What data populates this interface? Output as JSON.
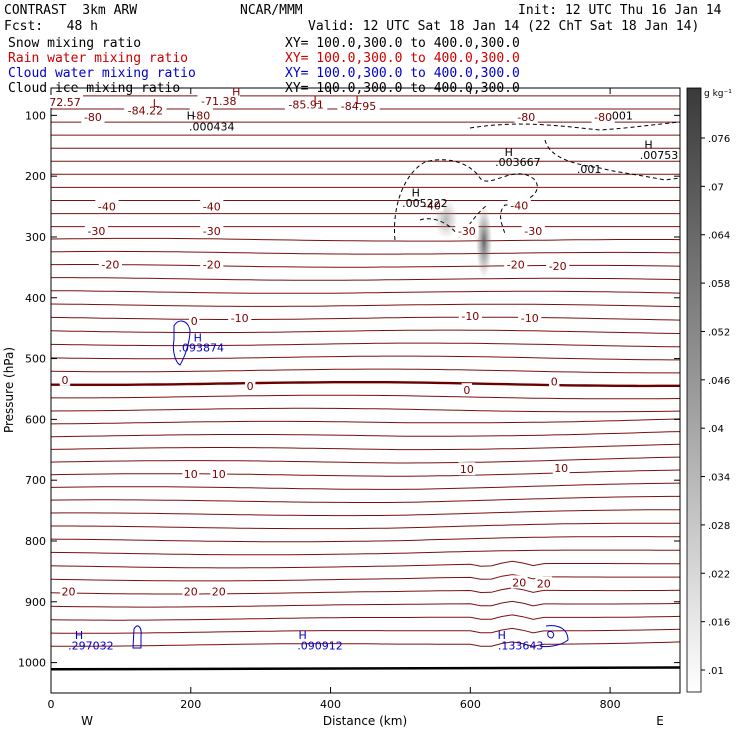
{
  "header": {
    "model": "CONTRAST  3km ARW",
    "org": "NCAR/MMM",
    "init": "Init: 12 UTC Thu 16 Jan 14",
    "fcst": "Fcst:   48 h",
    "valid": "Valid: 12 UTC Sat 18 Jan 14 (22 ChT Sat 18 Jan 14)"
  },
  "legend": [
    {
      "name": "Snow mixing ratio",
      "xy": "XY= 100.0,300.0 to 400.0,300.0",
      "color": "#000000"
    },
    {
      "name": "Rain water mixing ratio",
      "xy": "XY= 100.0,300.0 to 400.0,300.0",
      "color": "#cc0000"
    },
    {
      "name": "Cloud water mixing ratio",
      "xy": "XY= 100.0,300.0 to 400.0,300.0",
      "color": "#0000cc"
    },
    {
      "name": "Cloud ice mixing ratio",
      "xy": "XY= 100.0,300.0 to 400.0,300.0",
      "color": "#000000"
    }
  ],
  "colorbar": {
    "unit": "g kg⁻¹",
    "ticks": [
      ".01",
      ".016",
      ".022",
      ".028",
      ".034",
      ".04",
      ".046",
      ".052",
      ".058",
      ".064",
      ".07",
      ".076"
    ]
  },
  "chart_data": {
    "type": "cross-section",
    "xlabel": "Distance (km)",
    "ylabel": "Pressure (hPa)",
    "xlim": [
      0,
      900
    ],
    "ylim": [
      1050,
      55
    ],
    "xticks": [
      0,
      200,
      400,
      600,
      800
    ],
    "yticks": [
      100,
      200,
      300,
      400,
      500,
      600,
      700,
      800,
      900,
      1000
    ],
    "left_dir": "W",
    "right_dir": "E",
    "temperature_labels": [
      {
        "t": "72.57",
        "x": 20,
        "p": 78
      },
      {
        "t": "-71.38",
        "x": 240,
        "p": 76
      },
      {
        "t": "-84.22",
        "x": 135,
        "p": 92
      },
      {
        "t": "-85.91",
        "x": 365,
        "p": 82
      },
      {
        "t": "-84.95",
        "x": 440,
        "p": 85
      },
      {
        "t": "-80",
        "x": 60,
        "p": 103
      },
      {
        "t": "-80",
        "x": 215,
        "p": 100
      },
      {
        "t": "-80",
        "x": 680,
        "p": 103
      },
      {
        "t": "-80",
        "x": 790,
        "p": 103
      },
      {
        "t": "-40",
        "x": 80,
        "p": 250
      },
      {
        "t": "-40",
        "x": 230,
        "p": 250
      },
      {
        "t": "-40",
        "x": 545,
        "p": 248
      },
      {
        "t": "-40",
        "x": 670,
        "p": 248
      },
      {
        "t": "-30",
        "x": 65,
        "p": 290
      },
      {
        "t": "-30",
        "x": 230,
        "p": 290
      },
      {
        "t": "-30",
        "x": 595,
        "p": 290
      },
      {
        "t": "-30",
        "x": 690,
        "p": 290
      },
      {
        "t": "-20",
        "x": 85,
        "p": 345
      },
      {
        "t": "-20",
        "x": 230,
        "p": 345
      },
      {
        "t": "-20",
        "x": 665,
        "p": 345
      },
      {
        "t": "-20",
        "x": 725,
        "p": 348
      },
      {
        "t": "-10",
        "x": 270,
        "p": 433
      },
      {
        "t": "-10",
        "x": 600,
        "p": 430
      },
      {
        "t": "-10",
        "x": 685,
        "p": 433
      },
      {
        "t": "0",
        "x": 205,
        "p": 438
      },
      {
        "t": "0",
        "x": 20,
        "p": 535
      },
      {
        "t": "0",
        "x": 285,
        "p": 545
      },
      {
        "t": "0",
        "x": 595,
        "p": 552
      },
      {
        "t": "0",
        "x": 720,
        "p": 538
      },
      {
        "t": "10",
        "x": 200,
        "p": 690
      },
      {
        "t": "10",
        "x": 240,
        "p": 690
      },
      {
        "t": "10",
        "x": 595,
        "p": 682
      },
      {
        "t": "10",
        "x": 730,
        "p": 680
      },
      {
        "t": "20",
        "x": 25,
        "p": 883
      },
      {
        "t": "20",
        "x": 200,
        "p": 883
      },
      {
        "t": "20",
        "x": 240,
        "p": 883
      },
      {
        "t": "20",
        "x": 670,
        "p": 868
      },
      {
        "t": "20",
        "x": 705,
        "p": 870
      }
    ],
    "maxima_labels": [
      {
        "t": "H",
        "x": 200,
        "p": 100,
        "c": "#000000"
      },
      {
        "t": ".000434",
        "x": 230,
        "p": 118,
        "c": "#000000"
      },
      {
        "t": "L",
        "x": 150,
        "p": 80,
        "c": "#8b0000"
      },
      {
        "t": "H",
        "x": 265,
        "p": 61,
        "c": "#8b0000"
      },
      {
        "t": "L",
        "x": 380,
        "p": 75,
        "c": "#8b0000"
      },
      {
        "t": "L",
        "x": 440,
        "p": 75,
        "c": "#8b0000"
      },
      {
        "t": ".001",
        "x": 815,
        "p": 100,
        "c": "#000000"
      },
      {
        "t": "H",
        "x": 855,
        "p": 148,
        "c": "#000000"
      },
      {
        "t": ".00753",
        "x": 870,
        "p": 165,
        "c": "#000000"
      },
      {
        "t": ".001",
        "x": 770,
        "p": 188,
        "c": "#000000"
      },
      {
        "t": "H",
        "x": 655,
        "p": 160,
        "c": "#000000"
      },
      {
        "t": ".003667",
        "x": 668,
        "p": 177,
        "c": "#000000"
      },
      {
        "t": "H",
        "x": 522,
        "p": 227,
        "c": "#000000"
      },
      {
        "t": ".005222",
        "x": 535,
        "p": 244,
        "c": "#000000"
      },
      {
        "t": "H",
        "x": 210,
        "p": 465,
        "c": "#0000cc"
      },
      {
        "t": ".093874",
        "x": 215,
        "p": 482,
        "c": "#0000cc"
      },
      {
        "t": "H",
        "x": 40,
        "p": 955,
        "c": "#0000cc"
      },
      {
        "t": ".297032",
        "x": 57,
        "p": 972,
        "c": "#0000cc"
      },
      {
        "t": "H",
        "x": 360,
        "p": 955,
        "c": "#0000cc"
      },
      {
        "t": ".090912",
        "x": 385,
        "p": 972,
        "c": "#0000cc"
      },
      {
        "t": "H",
        "x": 645,
        "p": 955,
        "c": "#0000cc"
      },
      {
        "t": ".133643",
        "x": 672,
        "p": 972,
        "c": "#0000cc"
      }
    ]
  }
}
